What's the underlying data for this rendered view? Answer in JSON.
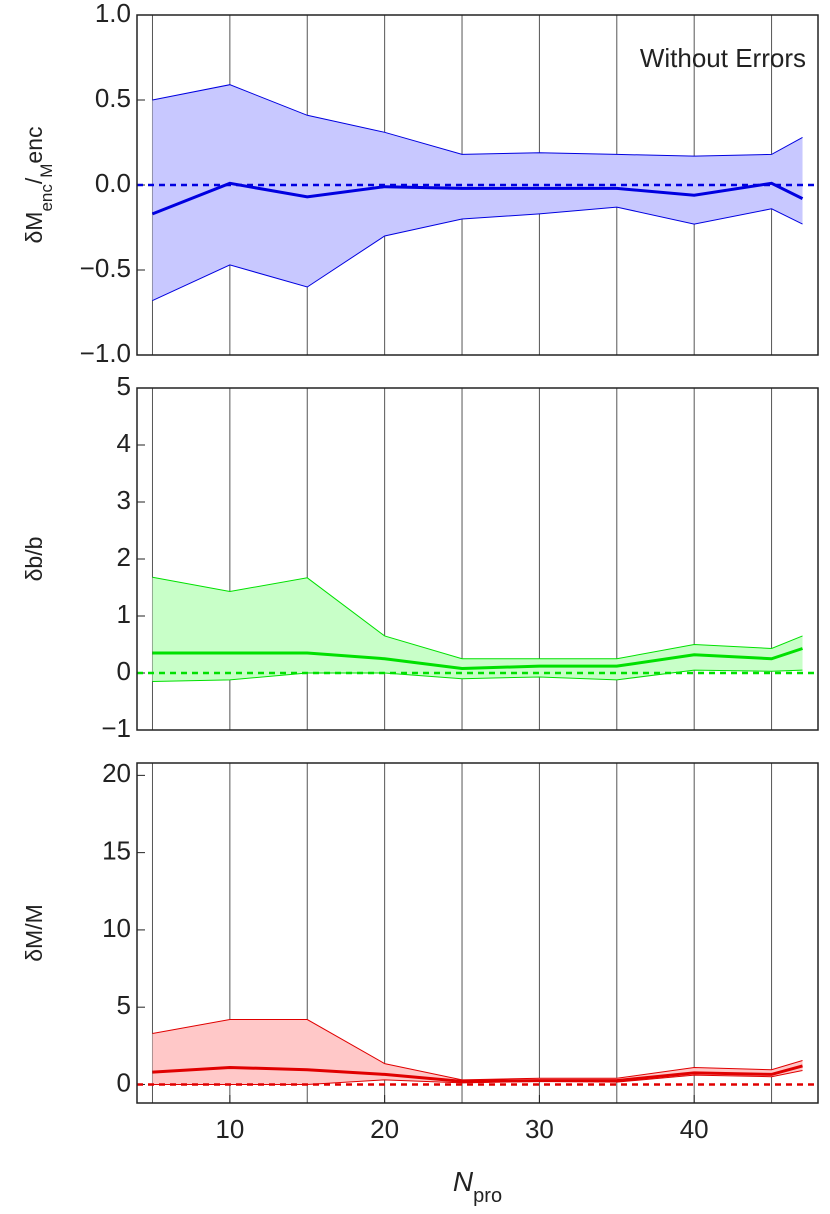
{
  "chart_data": [
    {
      "type": "band",
      "annotation": "Without Errors",
      "y_label": [
        "δM",
        "enc",
        "/",
        "M",
        "enc"
      ],
      "x": [
        5,
        10,
        15,
        20,
        25,
        30,
        35,
        40,
        45,
        47
      ],
      "series": [
        {
          "color": "#0000e0",
          "fill": "#c8c8ff",
          "values": [
            -0.17,
            0.01,
            -0.07,
            -0.01,
            -0.02,
            -0.02,
            -0.02,
            -0.06,
            0.01,
            -0.08
          ],
          "upper": [
            0.5,
            0.59,
            0.41,
            0.31,
            0.18,
            0.19,
            0.18,
            0.17,
            0.18,
            0.28
          ],
          "lower": [
            -0.68,
            -0.47,
            -0.6,
            -0.3,
            -0.2,
            -0.17,
            -0.13,
            -0.23,
            -0.14,
            -0.23
          ]
        }
      ],
      "hline": 0,
      "xlim": [
        4,
        48
      ],
      "xgrid": [
        5,
        10,
        15,
        20,
        25,
        30,
        35,
        40,
        45
      ],
      "ylim": [
        -1,
        1
      ],
      "yticks": [
        {
          "value": -1,
          "label": "−1.0"
        },
        {
          "value": -0.5,
          "label": "−0.5"
        },
        {
          "value": 0,
          "label": "0.0"
        },
        0.5,
        {
          "value": 1,
          "label": "1.0"
        }
      ]
    },
    {
      "type": "band",
      "y_label": [
        "δb/b"
      ],
      "x": [
        5,
        10,
        15,
        20,
        25,
        30,
        35,
        40,
        45,
        47
      ],
      "series": [
        {
          "color": "#00e000",
          "fill": "#c8ffc8",
          "values": [
            0.35,
            0.35,
            0.35,
            0.25,
            0.08,
            0.12,
            0.12,
            0.32,
            0.25,
            0.43
          ],
          "upper": [
            1.68,
            1.43,
            1.67,
            0.65,
            0.25,
            0.25,
            0.25,
            0.5,
            0.43,
            0.65
          ],
          "lower": [
            -0.15,
            -0.12,
            0,
            0,
            -0.1,
            -0.07,
            -0.12,
            0.05,
            0.03,
            0.05
          ]
        }
      ],
      "hline": 0,
      "xlim": [
        4,
        48
      ],
      "xgrid": [
        5,
        10,
        15,
        20,
        25,
        30,
        35,
        40,
        45
      ],
      "ylim": [
        -1,
        5
      ],
      "yticks": [
        {
          "value": -1,
          "label": "−1"
        },
        0,
        1,
        2,
        3,
        4,
        5
      ]
    },
    {
      "type": "band",
      "y_label": [
        "δM/M"
      ],
      "x_label": [
        "N",
        "pro"
      ],
      "x": [
        5,
        10,
        15,
        20,
        25,
        30,
        35,
        40,
        45,
        47
      ],
      "series": [
        {
          "color": "#e00000",
          "fill": "#ffc8c8",
          "values": [
            0.8,
            1.1,
            0.95,
            0.65,
            0.2,
            0.25,
            0.25,
            0.75,
            0.65,
            1.2
          ],
          "upper": [
            3.3,
            4.2,
            4.2,
            1.35,
            0.3,
            0.4,
            0.4,
            1.1,
            0.95,
            1.55
          ],
          "lower": [
            0,
            0,
            0,
            0.3,
            0.1,
            0.2,
            0.15,
            0.6,
            0.5,
            0.9
          ]
        }
      ],
      "hline": 0,
      "xlim": [
        4,
        48
      ],
      "xgrid": [
        5,
        10,
        15,
        20,
        25,
        30,
        35,
        40,
        45
      ],
      "xticks": [
        10,
        20,
        30,
        40
      ],
      "ylim": [
        -1.2,
        20.8
      ],
      "yticks": [
        0,
        5,
        10,
        15,
        20
      ]
    }
  ]
}
